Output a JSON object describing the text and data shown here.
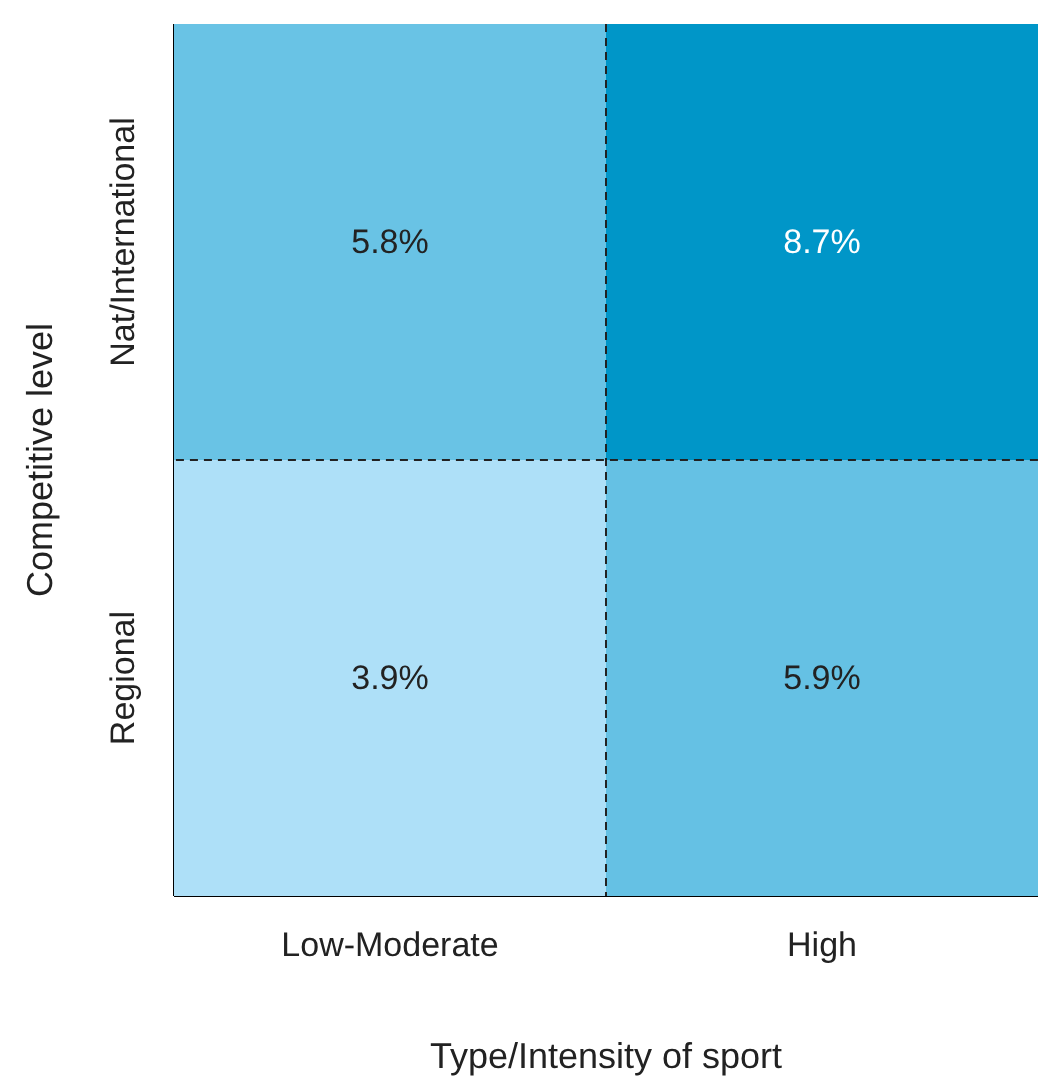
{
  "chart_data": {
    "type": "heatmap",
    "xlabel": "Type/Intensity of sport",
    "ylabel": "Competitive level",
    "categories": [
      "Low-Moderate",
      "High"
    ],
    "y_categories": [
      "Nat/International",
      "Regional"
    ],
    "cells": [
      [
        5.8,
        8.7
      ],
      [
        3.9,
        5.9
      ]
    ],
    "cell_labels": [
      [
        "5.8%",
        "8.7%"
      ],
      [
        "3.9%",
        "5.9%"
      ]
    ],
    "grid": true
  }
}
